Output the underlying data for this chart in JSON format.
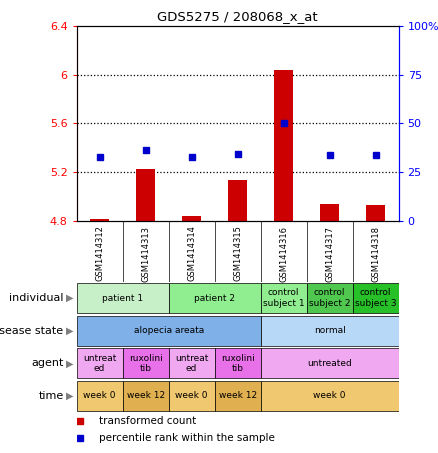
{
  "title": "GDS5275 / 208068_x_at",
  "samples": [
    "GSM1414312",
    "GSM1414313",
    "GSM1414314",
    "GSM1414315",
    "GSM1414316",
    "GSM1414317",
    "GSM1414318"
  ],
  "red_values": [
    4.81,
    5.22,
    4.84,
    5.13,
    6.04,
    4.94,
    4.93
  ],
  "blue_values": [
    5.32,
    5.38,
    5.32,
    5.35,
    5.6,
    5.34,
    5.34
  ],
  "ylim_left": [
    4.8,
    6.4
  ],
  "ylim_right": [
    0,
    100
  ],
  "yticks_left": [
    4.8,
    5.2,
    5.6,
    6.0,
    6.4
  ],
  "yticks_right": [
    0,
    25,
    50,
    75,
    100
  ],
  "ytick_labels_left": [
    "4.8",
    "5.2",
    "5.6",
    "6",
    "6.4"
  ],
  "ytick_labels_right": [
    "0",
    "25",
    "50",
    "75",
    "100%"
  ],
  "dotted_lines": [
    5.2,
    5.6,
    6.0
  ],
  "bar_color": "#cc0000",
  "dot_color": "#0000cc",
  "plot_bg": "#ffffff",
  "gsm_cell_color": "#c8c8c8",
  "individual_row": {
    "label": "individual",
    "cells": [
      {
        "text": "patient 1",
        "span": [
          0,
          1
        ],
        "color": "#c8f0c8"
      },
      {
        "text": "patient 2",
        "span": [
          2,
          3
        ],
        "color": "#90ee90"
      },
      {
        "text": "control\nsubject 1",
        "span": [
          4,
          4
        ],
        "color": "#90ee90"
      },
      {
        "text": "control\nsubject 2",
        "span": [
          5,
          5
        ],
        "color": "#50c850"
      },
      {
        "text": "control\nsubject 3",
        "span": [
          6,
          6
        ],
        "color": "#28c028"
      }
    ]
  },
  "disease_row": {
    "label": "disease state",
    "cells": [
      {
        "text": "alopecia areata",
        "span": [
          0,
          3
        ],
        "color": "#80b0e8"
      },
      {
        "text": "normal",
        "span": [
          4,
          6
        ],
        "color": "#b8d8f8"
      }
    ]
  },
  "agent_row": {
    "label": "agent",
    "cells": [
      {
        "text": "untreat\ned",
        "span": [
          0,
          0
        ],
        "color": "#f0a8f0"
      },
      {
        "text": "ruxolini\ntib",
        "span": [
          1,
          1
        ],
        "color": "#e870e8"
      },
      {
        "text": "untreat\ned",
        "span": [
          2,
          2
        ],
        "color": "#f0a8f0"
      },
      {
        "text": "ruxolini\ntib",
        "span": [
          3,
          3
        ],
        "color": "#e870e8"
      },
      {
        "text": "untreated",
        "span": [
          4,
          6
        ],
        "color": "#f0a8f0"
      }
    ]
  },
  "time_row": {
    "label": "time",
    "cells": [
      {
        "text": "week 0",
        "span": [
          0,
          0
        ],
        "color": "#f0c870"
      },
      {
        "text": "week 12",
        "span": [
          1,
          1
        ],
        "color": "#e0b050"
      },
      {
        "text": "week 0",
        "span": [
          2,
          2
        ],
        "color": "#f0c870"
      },
      {
        "text": "week 12",
        "span": [
          3,
          3
        ],
        "color": "#e0b050"
      },
      {
        "text": "week 0",
        "span": [
          4,
          6
        ],
        "color": "#f0c870"
      }
    ]
  }
}
